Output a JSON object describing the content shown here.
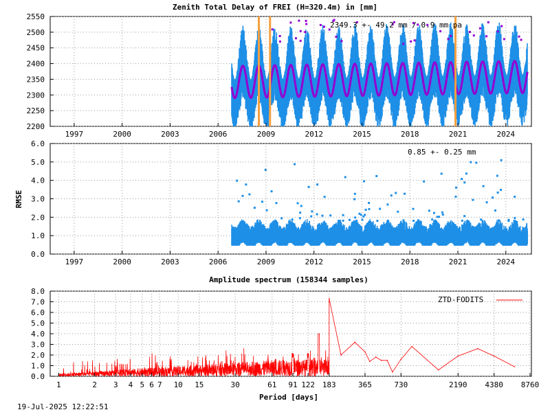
{
  "chart_data": [
    {
      "type": "scatter",
      "title": "Zenith Total Delay of FREI (H=320.4m) in [mm]",
      "xlabel": "",
      "ylabel": "",
      "xlim": [
        1995.5,
        2025.6
      ],
      "ylim": [
        2200,
        2550
      ],
      "xticks": [
        "1997",
        "2000",
        "2003",
        "2006",
        "2009",
        "2012",
        "2015",
        "2018",
        "2021",
        "2024"
      ],
      "yticks": [
        "2200",
        "2250",
        "2300",
        "2350",
        "2400",
        "2450",
        "2500",
        "2550"
      ],
      "annotation": "2349.3 +-  49.2 mm /  0.9 mm pa",
      "grid": true,
      "data_start": 2006.85,
      "data_end": 2025.35,
      "series": [
        {
          "values": [
            2349.3
          ],
          "color": "#1e8fe6"
        },
        {
          "values": [
            2349.3
          ],
          "color": "#9400d3"
        }
      ],
      "vertical_markers": [
        2008.55,
        2009.25,
        2020.85
      ],
      "marker_color": "#f5a040",
      "seasonal_mean": 2349.3,
      "seasonal_amplitude": 49.2,
      "trend_mm_pa": 0.9
    },
    {
      "type": "scatter",
      "title": "",
      "xlabel": "",
      "ylabel": "RMSE",
      "xlim": [
        1995.5,
        2025.6
      ],
      "ylim": [
        0.0,
        6.0
      ],
      "xticks": [
        "1997",
        "2000",
        "2003",
        "2006",
        "2009",
        "2012",
        "2015",
        "2018",
        "2021",
        "2024"
      ],
      "yticks": [
        "0.0",
        "1.0",
        "2.0",
        "3.0",
        "4.0",
        "5.0",
        "6.0"
      ],
      "annotation": "0.85 +-  0.25 mm",
      "grid": true,
      "series": [
        {
          "values": [
            0.85
          ],
          "color": "#1e8fe6"
        }
      ]
    },
    {
      "type": "line",
      "title": "Amplitude spectrum (158344 samples)",
      "xlabel": "Period [days]",
      "ylabel": "",
      "xscale": "log",
      "xlim": [
        0.85,
        9000
      ],
      "ylim": [
        0.0,
        8.0
      ],
      "xticks": [
        "1",
        "2",
        "3",
        "4",
        "5",
        "6",
        "7",
        "10",
        "15",
        "30",
        "61",
        "91",
        "122",
        "183",
        "365",
        "730",
        "2190",
        "4380",
        "8760"
      ],
      "yticks": [
        "0.0",
        "1.0",
        "2.0",
        "3.0",
        "4.0",
        "5.0",
        "6.0",
        "7.0",
        "8.0"
      ],
      "grid": true,
      "legend": "top-right",
      "series": [
        {
          "name": "ZTD-FODITS",
          "color": "#ff0000",
          "x": [
            183,
            230,
            300,
            365,
            400,
            450,
            500,
            560,
            620,
            730,
            900,
            1500,
            2190,
            3200,
            4380,
            6500
          ],
          "values": [
            7.3,
            2.0,
            3.2,
            2.3,
            1.4,
            1.8,
            1.5,
            1.5,
            0.4,
            1.6,
            2.8,
            0.6,
            1.9,
            2.6,
            1.9,
            0.9
          ]
        }
      ]
    }
  ],
  "footer": {
    "timestamp": "19-Jul-2025 12:22:51"
  }
}
